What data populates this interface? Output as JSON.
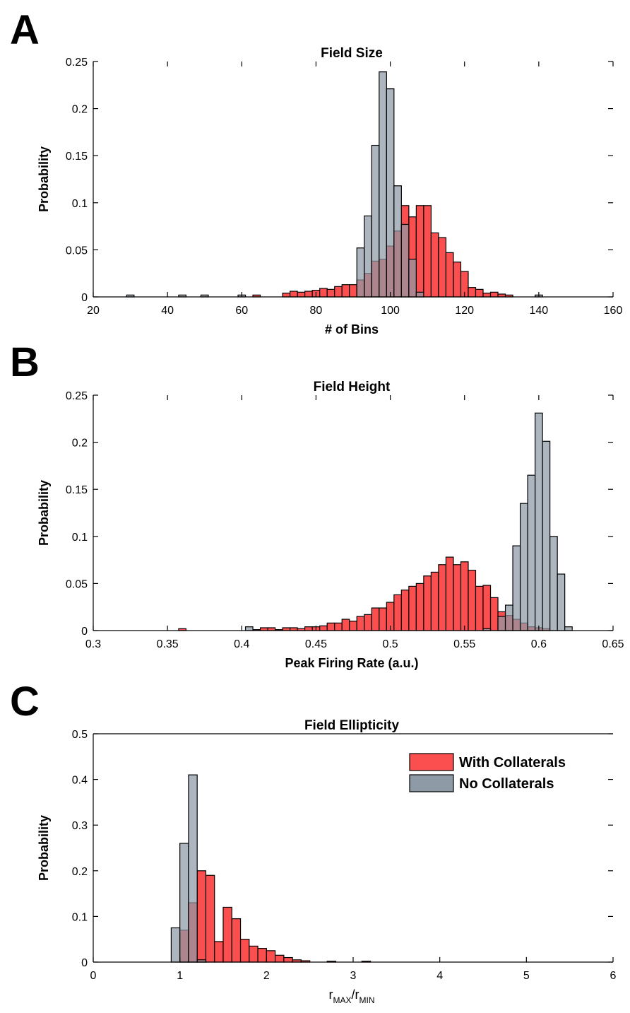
{
  "colors": {
    "with_collaterals": "#fb4f4f",
    "no_collaterals": "#8e9aa6",
    "overlap": "#a56e79"
  },
  "legend": {
    "with_label": "With Collaterals",
    "no_label": "No Collaterals"
  },
  "chart_data": [
    {
      "type": "bar",
      "panel": "A",
      "title": "Field Size",
      "xlabel": "# of Bins",
      "ylabel": "Probability",
      "xlim": [
        20,
        160
      ],
      "ylim": [
        0,
        0.25
      ],
      "xticks": [
        "20",
        "40",
        "60",
        "80",
        "100",
        "120",
        "140",
        "160"
      ],
      "yticks": [
        "0",
        "0.05",
        "0.1",
        "0.15",
        "0.2",
        "0.25"
      ],
      "grid": false,
      "bin_width": 2,
      "series": [
        {
          "name": "With Collaterals",
          "x": [
            64,
            72,
            74,
            76,
            78,
            80,
            82,
            84,
            86,
            88,
            90,
            92,
            94,
            96,
            98,
            100,
            102,
            104,
            106,
            108,
            110,
            112,
            114,
            116,
            118,
            120,
            122,
            124,
            126,
            128,
            130,
            132
          ],
          "values": [
            0.002,
            0.004,
            0.006,
            0.005,
            0.006,
            0.007,
            0.009,
            0.008,
            0.011,
            0.013,
            0.013,
            0.018,
            0.025,
            0.038,
            0.04,
            0.054,
            0.07,
            0.097,
            0.085,
            0.097,
            0.097,
            0.068,
            0.063,
            0.047,
            0.037,
            0.027,
            0.01,
            0.008,
            0.004,
            0.005,
            0.003,
            0.002
          ]
        },
        {
          "name": "No Collaterals",
          "x": [
            30,
            44,
            50,
            60,
            92,
            94,
            96,
            98,
            100,
            102,
            104,
            106,
            108,
            140
          ],
          "values": [
            0.002,
            0.002,
            0.002,
            0.002,
            0.052,
            0.086,
            0.161,
            0.239,
            0.221,
            0.118,
            0.077,
            0.04,
            0.005,
            0.002
          ]
        }
      ]
    },
    {
      "type": "bar",
      "panel": "B",
      "title": "Field Height",
      "xlabel": "Peak Firing Rate (a.u.)",
      "ylabel": "Probability",
      "xlim": [
        0.3,
        0.65
      ],
      "ylim": [
        0,
        0.25
      ],
      "xticks": [
        "0.3",
        "0.35",
        "0.4",
        "0.45",
        "0.5",
        "0.55",
        "0.6",
        "0.65"
      ],
      "yticks": [
        "0",
        "0.05",
        "0.1",
        "0.15",
        "0.2",
        "0.25"
      ],
      "grid": false,
      "bin_width": 0.005,
      "series": [
        {
          "name": "With Collaterals",
          "x": [
            0.36,
            0.41,
            0.415,
            0.42,
            0.425,
            0.43,
            0.435,
            0.44,
            0.445,
            0.45,
            0.455,
            0.46,
            0.465,
            0.47,
            0.475,
            0.48,
            0.485,
            0.49,
            0.495,
            0.5,
            0.505,
            0.51,
            0.515,
            0.52,
            0.525,
            0.53,
            0.535,
            0.54,
            0.545,
            0.55,
            0.555,
            0.56,
            0.565,
            0.57,
            0.575,
            0.58,
            0.585,
            0.59,
            0.595,
            0.6,
            0.605
          ],
          "values": [
            0.002,
            0.001,
            0.003,
            0.003,
            0.001,
            0.003,
            0.003,
            0.002,
            0.004,
            0.004,
            0.005,
            0.008,
            0.008,
            0.012,
            0.01,
            0.015,
            0.017,
            0.024,
            0.024,
            0.03,
            0.038,
            0.043,
            0.047,
            0.05,
            0.058,
            0.062,
            0.07,
            0.078,
            0.07,
            0.073,
            0.064,
            0.047,
            0.048,
            0.035,
            0.02,
            0.016,
            0.012,
            0.008,
            0.004,
            0.003,
            0.002
          ]
        },
        {
          "name": "No Collaterals",
          "x": [
            0.405,
            0.565,
            0.575,
            0.58,
            0.585,
            0.59,
            0.595,
            0.6,
            0.605,
            0.61,
            0.615,
            0.62
          ],
          "values": [
            0.004,
            0.002,
            0.015,
            0.027,
            0.09,
            0.135,
            0.165,
            0.231,
            0.201,
            0.1,
            0.06,
            0.004
          ]
        }
      ]
    },
    {
      "type": "bar",
      "panel": "C",
      "title": "Field Ellipticity",
      "xlabel": "r",
      "xlabel_sub_num": "MAX",
      "xlabel_slash": "/r",
      "xlabel_sub_den": "MIN",
      "ylabel": "Probability",
      "xlim": [
        0,
        6
      ],
      "ylim": [
        0,
        0.5
      ],
      "xticks": [
        "0",
        "1",
        "2",
        "3",
        "4",
        "5",
        "6"
      ],
      "yticks": [
        "0",
        "0.1",
        "0.2",
        "0.3",
        "0.4",
        "0.5"
      ],
      "grid": false,
      "legend_position": "top-right",
      "bin_width": 0.1,
      "series": [
        {
          "name": "With Collaterals",
          "x": [
            1.05,
            1.15,
            1.25,
            1.35,
            1.45,
            1.55,
            1.65,
            1.75,
            1.85,
            1.95,
            2.05,
            2.15,
            2.25,
            2.35,
            2.45,
            2.75,
            3.15
          ],
          "values": [
            0.07,
            0.13,
            0.2,
            0.19,
            0.045,
            0.12,
            0.095,
            0.05,
            0.035,
            0.03,
            0.025,
            0.015,
            0.01,
            0.005,
            0.003,
            0.002,
            0.002
          ]
        },
        {
          "name": "No Collaterals",
          "x": [
            0.95,
            1.05,
            1.15,
            1.25
          ],
          "values": [
            0.075,
            0.26,
            0.41,
            0.005
          ]
        }
      ]
    }
  ]
}
